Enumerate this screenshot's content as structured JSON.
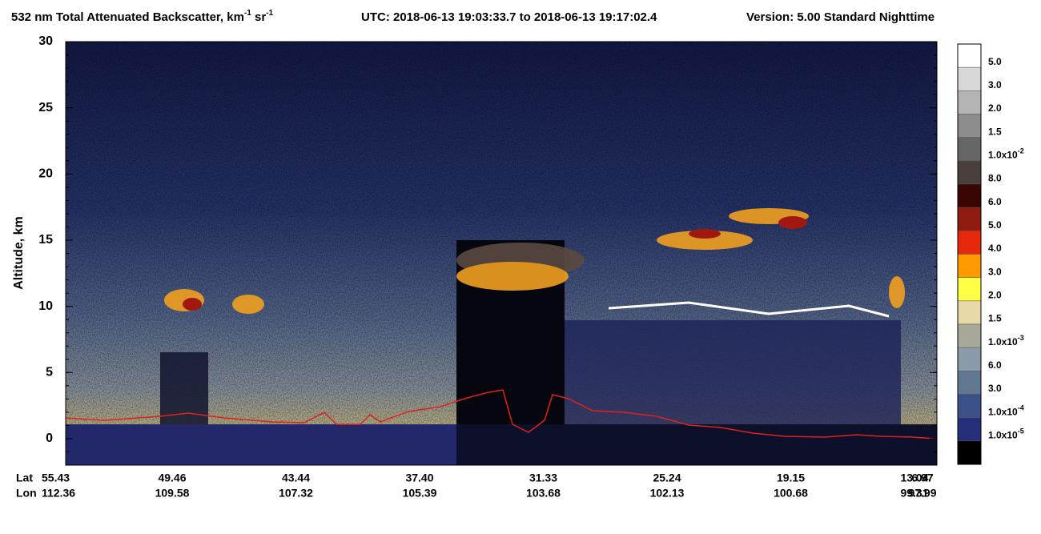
{
  "chart_data": {
    "type": "curtain",
    "title": "532 nm Total Attenuated Backscatter, km",
    "title_exp1": "-1",
    "title_unit2": " sr",
    "title_exp2": "-1",
    "subtitle": "UTC:  2018-06-13 19:03:33.7  to  2018-06-13 19:17:02.4",
    "version": "Version: 5.00  Standard  Nighttime",
    "ylabel": "Altitude, km",
    "ylim": [
      -2,
      30
    ],
    "yticks": [
      0,
      5,
      10,
      15,
      20,
      25,
      30
    ],
    "x_row_labels": [
      "Lat",
      "Lon"
    ],
    "lat": [
      "55.43",
      "49.46",
      "43.44",
      "37.40",
      "31.33",
      "25.24",
      "19.15",
      "13.04",
      "6.97"
    ],
    "lon": [
      "112.36",
      "109.58",
      "107.32",
      "105.39",
      "103.68",
      "102.13",
      "100.68",
      "99.31",
      "97.99"
    ],
    "colorbar": {
      "colors": [
        "#ffffff",
        "#d8d8d8",
        "#b4b4b4",
        "#8c8c8c",
        "#666666",
        "#48403c",
        "#3a0505",
        "#8e1a10",
        "#e8280c",
        "#ff9a00",
        "#ffff44",
        "#e8d8a8",
        "#a8a898",
        "#8a9aa8",
        "#607890",
        "#3c5088",
        "#26307a",
        "#000000"
      ],
      "labels": [
        {
          "text": "5.0"
        },
        {
          "text": "3.0"
        },
        {
          "text": "2.0"
        },
        {
          "text": "1.5"
        },
        {
          "text": "1.0x10",
          "exp": "-2"
        },
        {
          "text": "8.0"
        },
        {
          "text": "6.0"
        },
        {
          "text": "5.0"
        },
        {
          "text": "4.0"
        },
        {
          "text": "3.0"
        },
        {
          "text": "2.0"
        },
        {
          "text": "1.5"
        },
        {
          "text": "1.0x10",
          "exp": "-3"
        },
        {
          "text": "6.0"
        },
        {
          "text": "3.0"
        },
        {
          "text": "1.0x10",
          "exp": "-4"
        },
        {
          "text": "1.0x10",
          "exp": "-5"
        }
      ]
    }
  }
}
